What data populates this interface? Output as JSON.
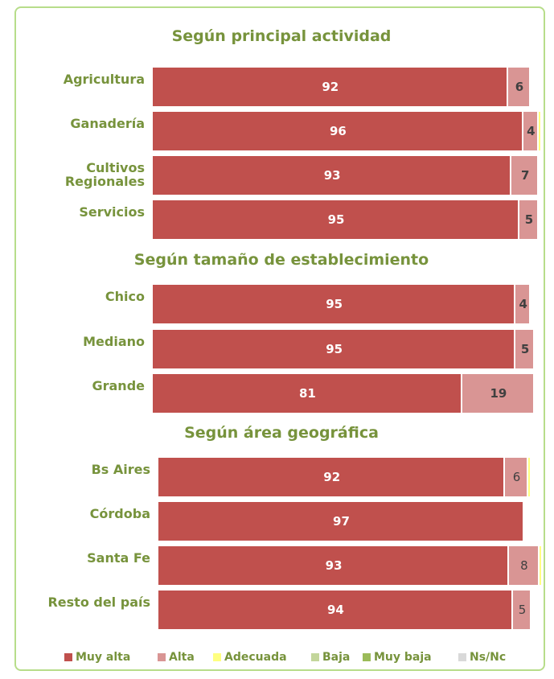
{
  "chart_data": [
    {
      "type": "bar",
      "orientation": "horizontal",
      "stacked": true,
      "title": "Según principal actividad",
      "categories": [
        "Agricultura",
        "Ganadería",
        "Cultivos Regionales",
        "Servicios"
      ],
      "xlim": [
        0,
        100
      ],
      "series": [
        {
          "name": "Muy alta",
          "color": "#c0504d",
          "values": [
            92,
            96,
            93,
            95
          ]
        },
        {
          "name": "Alta",
          "color": "#d99594",
          "values": [
            6,
            4,
            7,
            5
          ]
        },
        {
          "name": "Adecuada",
          "color": "#ffff80",
          "values": [
            null,
            0.5,
            null,
            null
          ]
        },
        {
          "name": "Baja",
          "color": "#c3d69b",
          "values": [
            null,
            null,
            null,
            null
          ]
        },
        {
          "name": "Muy baja",
          "color": "#9bbb59",
          "values": [
            null,
            null,
            null,
            null
          ]
        },
        {
          "name": "Ns/Nc",
          "color": "#d9d9d9",
          "values": [
            null,
            null,
            null,
            null
          ]
        }
      ]
    },
    {
      "type": "bar",
      "orientation": "horizontal",
      "stacked": true,
      "title": "Según tamaño de establecimiento",
      "categories": [
        "Chico",
        "Mediano",
        "Grande"
      ],
      "xlim": [
        0,
        100
      ],
      "series": [
        {
          "name": "Muy alta",
          "color": "#c0504d",
          "values": [
            95,
            95,
            81
          ]
        },
        {
          "name": "Alta",
          "color": "#d99594",
          "values": [
            4,
            5,
            19
          ]
        },
        {
          "name": "Adecuada",
          "color": "#ffff80",
          "values": [
            null,
            null,
            null
          ]
        },
        {
          "name": "Baja",
          "color": "#c3d69b",
          "values": [
            null,
            null,
            null
          ]
        },
        {
          "name": "Muy baja",
          "color": "#9bbb59",
          "values": [
            null,
            null,
            null
          ]
        },
        {
          "name": "Ns/Nc",
          "color": "#d9d9d9",
          "values": [
            null,
            null,
            null
          ]
        }
      ]
    },
    {
      "type": "bar",
      "orientation": "horizontal",
      "stacked": true,
      "title": "Según área geográfica",
      "categories": [
        "Bs Aires",
        "Córdoba",
        "Santa Fe",
        "Resto del país"
      ],
      "xlim": [
        0,
        100
      ],
      "series": [
        {
          "name": "Muy alta",
          "color": "#c0504d",
          "values": [
            92,
            97,
            93,
            94
          ]
        },
        {
          "name": "Alta",
          "color": "#d99594",
          "values": [
            6,
            null,
            8,
            5
          ]
        },
        {
          "name": "Adecuada",
          "color": "#ffff80",
          "values": [
            1,
            null,
            0.5,
            null
          ]
        },
        {
          "name": "Baja",
          "color": "#c3d69b",
          "values": [
            null,
            null,
            null,
            null
          ]
        },
        {
          "name": "Muy baja",
          "color": "#9bbb59",
          "values": [
            null,
            null,
            null,
            null
          ]
        },
        {
          "name": "Ns/Nc",
          "color": "#d9d9d9",
          "values": [
            null,
            null,
            null,
            null
          ]
        }
      ]
    }
  ]
}
